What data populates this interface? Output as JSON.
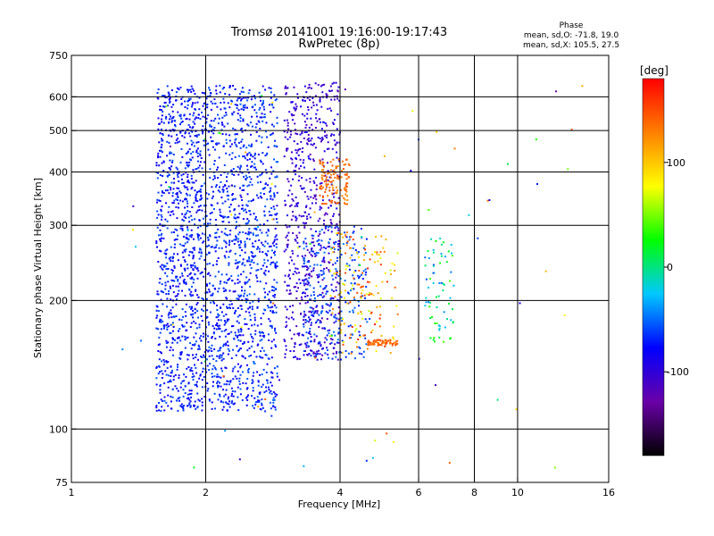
{
  "header": {
    "title_line1": "Tromsø 20141001 19:16:00-19:17:43",
    "title_line2": "RwPretec (8p)",
    "phase_heading": "Phase",
    "phase_stat_o": "mean, sd,O: -71.8, 19.0",
    "phase_stat_x": "mean, sd,X: 105.5, 27.5"
  },
  "chart_data": {
    "type": "scatter",
    "xlabel": "Frequency [MHz]",
    "ylabel": "Stationary phase Virtual Height [km]",
    "x_scale": "log",
    "y_scale": "log",
    "xlim": [
      1,
      16
    ],
    "ylim": [
      75,
      750
    ],
    "x_ticks": [
      1,
      2,
      4,
      6,
      8,
      10,
      16
    ],
    "y_ticks": [
      75,
      100,
      200,
      300,
      400,
      500,
      600,
      750
    ],
    "x_gridlines": [
      2,
      4,
      6,
      8,
      10
    ],
    "y_gridlines": [
      100,
      200,
      300,
      400,
      500,
      600
    ],
    "grid": true,
    "colorbar": {
      "label": "[deg]",
      "range": [
        -180,
        180
      ],
      "ticks": [
        100,
        0,
        -100
      ],
      "colormap": [
        "#000000",
        "#6a00a8",
        "#0000ff",
        "#00c8ff",
        "#00ff00",
        "#ffff00",
        "#ff8000",
        "#ff0000"
      ]
    },
    "traces": [
      {
        "x_range": [
          1.55,
          1.95
        ],
        "h_range": [
          110,
          640
        ],
        "phase_range": [
          -90,
          -55
        ],
        "count": 900
      },
      {
        "x_range": [
          1.95,
          2.35
        ],
        "h_range": [
          110,
          640
        ],
        "phase_range": [
          -85,
          -55
        ],
        "count": 600
      },
      {
        "x_range": [
          2.35,
          2.9
        ],
        "h_range": [
          110,
          640
        ],
        "phase_range": [
          -90,
          -50
        ],
        "count": 700
      },
      {
        "x_range": [
          3.0,
          4.0
        ],
        "h_range": [
          145,
          650
        ],
        "phase_range": [
          -120,
          -85
        ],
        "count": 650
      },
      {
        "x_range": [
          3.3,
          4.6
        ],
        "h_range": [
          145,
          300
        ],
        "phase_range": [
          -75,
          -45
        ],
        "count": 250
      },
      {
        "x_range": [
          3.6,
          4.2
        ],
        "h_range": [
          335,
          430
        ],
        "phase_range": [
          120,
          150
        ],
        "count": 120
      },
      {
        "x_range": [
          3.8,
          5.4
        ],
        "h_range": [
          150,
          290
        ],
        "phase_range": [
          60,
          170
        ],
        "count": 160
      },
      {
        "x_range": [
          4.6,
          5.4
        ],
        "h_range": [
          157,
          162
        ],
        "phase_range": [
          130,
          150
        ],
        "count": 60
      },
      {
        "x_range": [
          6.2,
          7.2
        ],
        "h_range": [
          160,
          280
        ],
        "phase_range": [
          -60,
          40
        ],
        "count": 70
      },
      {
        "x_range": [
          1.3,
          14
        ],
        "h_range": [
          80,
          650
        ],
        "phase_range": [
          -130,
          160
        ],
        "count": 90
      }
    ]
  }
}
